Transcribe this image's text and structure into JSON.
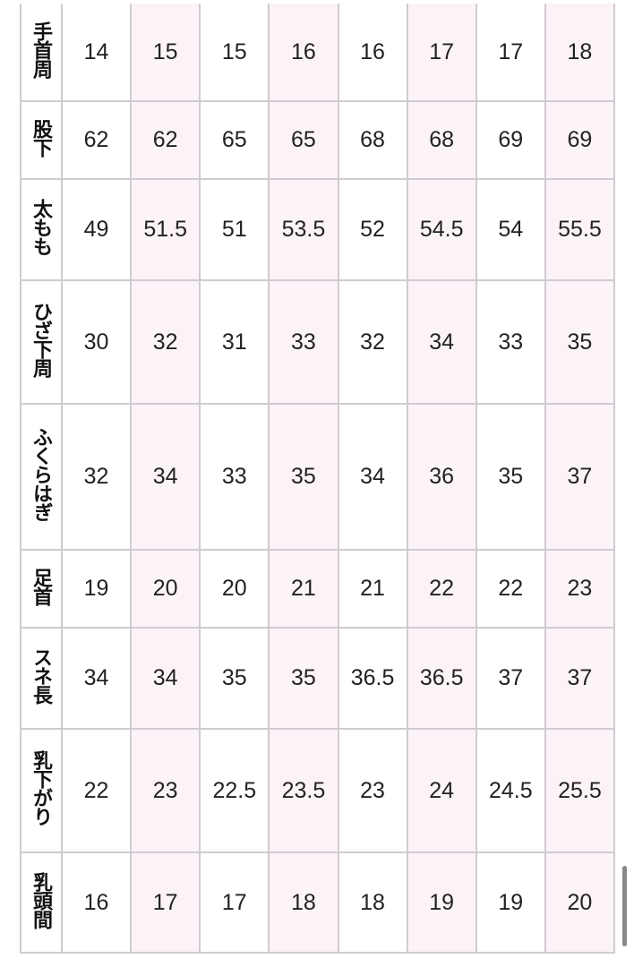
{
  "table": {
    "rows": [
      {
        "label": "手首周",
        "values": [
          "14",
          "15",
          "15",
          "16",
          "16",
          "17",
          "17",
          "18"
        ]
      },
      {
        "label": "股下",
        "values": [
          "62",
          "62",
          "65",
          "65",
          "68",
          "68",
          "69",
          "69"
        ]
      },
      {
        "label": "太もも",
        "values": [
          "49",
          "51.5",
          "51",
          "53.5",
          "52",
          "54.5",
          "54",
          "55.5"
        ]
      },
      {
        "label": "ひざ下周",
        "values": [
          "30",
          "32",
          "31",
          "33",
          "32",
          "34",
          "33",
          "35"
        ]
      },
      {
        "label": "ふくらはぎ",
        "values": [
          "32",
          "34",
          "33",
          "35",
          "34",
          "36",
          "35",
          "37"
        ]
      },
      {
        "label": "足首",
        "values": [
          "19",
          "20",
          "20",
          "21",
          "21",
          "22",
          "22",
          "23"
        ]
      },
      {
        "label": "スネ長",
        "values": [
          "34",
          "34",
          "35",
          "35",
          "36.5",
          "36.5",
          "37",
          "37"
        ]
      },
      {
        "label": "乳下がり",
        "values": [
          "22",
          "23",
          "22.5",
          "23.5",
          "23",
          "24",
          "24.5",
          "25.5"
        ]
      },
      {
        "label": "乳頭間",
        "values": [
          "16",
          "17",
          "17",
          "18",
          "18",
          "19",
          "19",
          "20"
        ]
      }
    ]
  },
  "colors": {
    "alt_column": "#fcf3f8",
    "border": "#cfcbd0"
  }
}
